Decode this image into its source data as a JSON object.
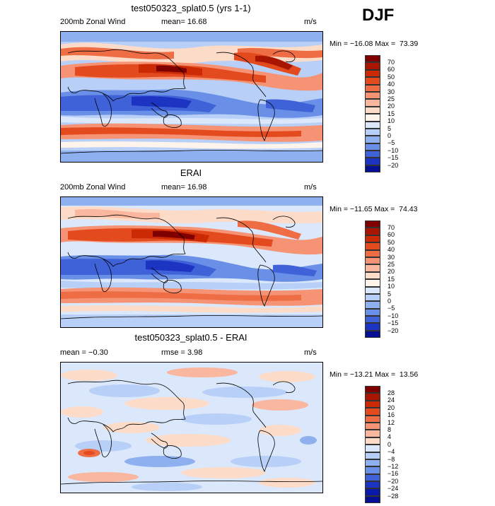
{
  "season": "DJF",
  "panels": [
    {
      "title": "test050323_splat0.5 (yrs 1-1)",
      "left_label": "200mb Zonal Wind",
      "stat_text": "mean=  16.68",
      "units": "m/s",
      "minmax": "Min = −16.08 Max =  73.39",
      "levels": [
        "70",
        "60",
        "50",
        "40",
        "30",
        "25",
        "20",
        "15",
        "10",
        "5",
        "0",
        "−5",
        "−10",
        "−15",
        "−20"
      ],
      "colors": [
        "#7f0000",
        "#a81500",
        "#cc2a05",
        "#e34b1f",
        "#ee6d45",
        "#f59374",
        "#f9b79f",
        "#fcdcc8",
        "#fff4eb",
        "#dbe7fb",
        "#b8cff7",
        "#8fb0ef",
        "#6a8fe6",
        "#3f62d8",
        "#1d33c2",
        "#060e92"
      ],
      "map_key": "model"
    },
    {
      "title": "ERAI",
      "left_label": "200mb Zonal Wind",
      "stat_text": "mean=  16.98",
      "units": "m/s",
      "minmax": "Min = −11.65 Max =  74.43",
      "levels": [
        "70",
        "60",
        "50",
        "40",
        "30",
        "25",
        "20",
        "15",
        "10",
        "5",
        "0",
        "−5",
        "−10",
        "−15",
        "−20"
      ],
      "colors": [
        "#7f0000",
        "#a81500",
        "#cc2a05",
        "#e34b1f",
        "#ee6d45",
        "#f59374",
        "#f9b79f",
        "#fcdcc8",
        "#fff4eb",
        "#dbe7fb",
        "#b8cff7",
        "#8fb0ef",
        "#6a8fe6",
        "#3f62d8",
        "#1d33c2",
        "#060e92"
      ],
      "map_key": "obs"
    },
    {
      "title": "test050323_splat0.5 - ERAI",
      "left_label": "mean =  −0.30",
      "stat_text": "rmse =   3.98",
      "units": "m/s",
      "minmax": "Min = −13.21 Max =  13.56",
      "levels": [
        "28",
        "24",
        "20",
        "16",
        "12",
        "8",
        "4",
        "0",
        "−4",
        "−8",
        "−12",
        "−16",
        "−20",
        "−24",
        "−28"
      ],
      "colors": [
        "#7f0000",
        "#a81500",
        "#cc2a05",
        "#e34b1f",
        "#ee6d45",
        "#f59374",
        "#f9b79f",
        "#fcdcc8",
        "#dbe7fb",
        "#b8cff7",
        "#8fb0ef",
        "#6a8fe6",
        "#3f62d8",
        "#1d33c2",
        "#0a1aa8",
        "#060e92"
      ],
      "map_key": "diff"
    }
  ]
}
